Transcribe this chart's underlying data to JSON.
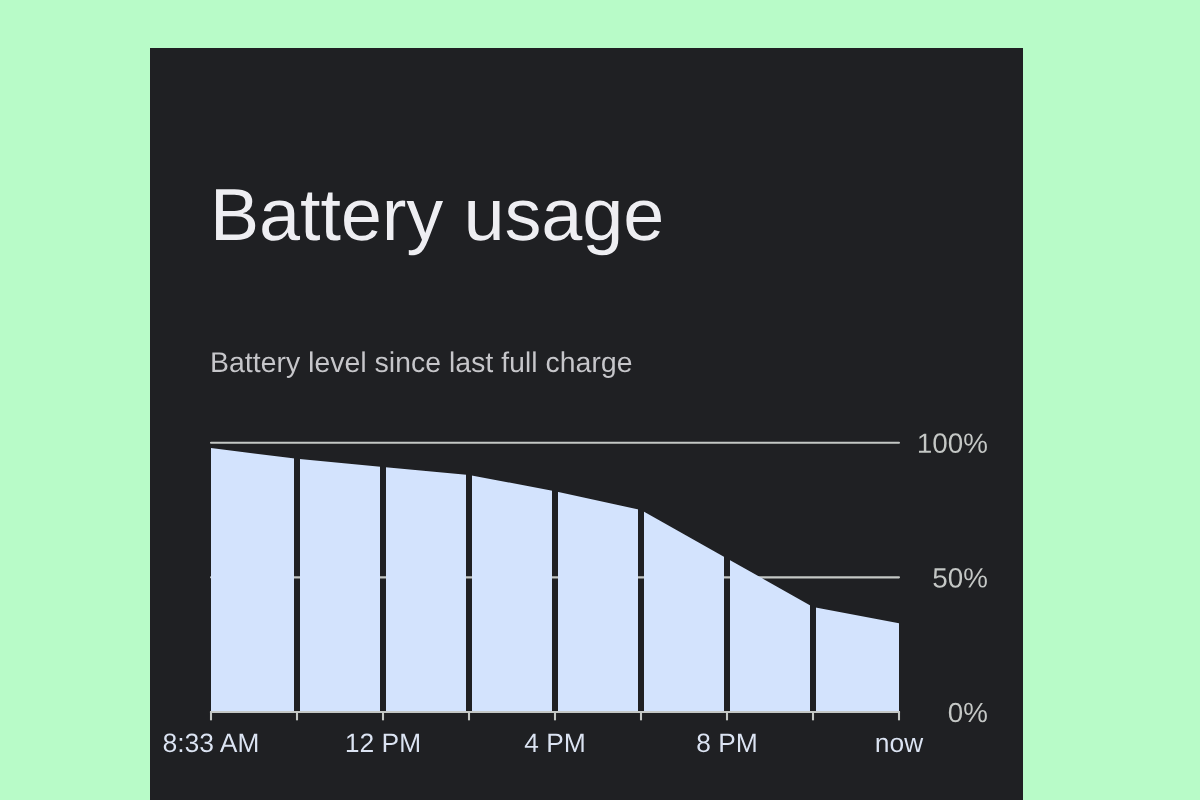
{
  "chart_data": {
    "type": "area",
    "title": "Battery usage",
    "subtitle": "Battery level since last full charge",
    "categories": [
      "8:33 AM",
      null,
      "12 PM",
      null,
      "4 PM",
      null,
      "8 PM",
      null,
      "now"
    ],
    "series": [
      {
        "color": "#d3e3fd",
        "values": [
          98,
          94,
          91,
          88,
          82,
          75,
          57,
          39,
          33
        ]
      }
    ],
    "ylim": [
      0,
      100
    ],
    "yticks": [
      {
        "value": 0,
        "label": "0%"
      },
      {
        "value": 50,
        "label": "50%"
      },
      {
        "value": 100,
        "label": "100%"
      }
    ],
    "grid": "y"
  }
}
